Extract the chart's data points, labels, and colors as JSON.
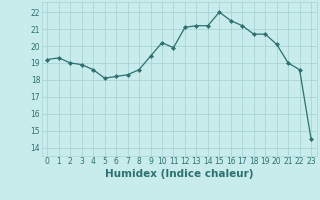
{
  "x": [
    0,
    1,
    2,
    3,
    4,
    5,
    6,
    7,
    8,
    9,
    10,
    11,
    12,
    13,
    14,
    15,
    16,
    17,
    18,
    19,
    20,
    21,
    22,
    23
  ],
  "y": [
    19.2,
    19.3,
    19.0,
    18.9,
    18.6,
    18.1,
    18.2,
    18.3,
    18.6,
    19.4,
    20.2,
    19.9,
    21.1,
    21.2,
    21.2,
    22.0,
    21.5,
    21.2,
    20.7,
    20.7,
    20.1,
    19.0,
    18.6,
    14.5
  ],
  "line_color": "#2e7070",
  "marker": "D",
  "marker_size": 2.0,
  "xlabel": "Humidex (Indice chaleur)",
  "bg_color": "#c8ebeb",
  "grid_color": "#aad4d4",
  "xlim": [
    -0.5,
    23.5
  ],
  "ylim": [
    13.5,
    22.6
  ],
  "yticks": [
    14,
    15,
    16,
    17,
    18,
    19,
    20,
    21,
    22
  ],
  "xticks": [
    0,
    1,
    2,
    3,
    4,
    5,
    6,
    7,
    8,
    9,
    10,
    11,
    12,
    13,
    14,
    15,
    16,
    17,
    18,
    19,
    20,
    21,
    22,
    23
  ],
  "tick_fontsize": 5.5,
  "xlabel_fontsize": 7.5,
  "label_color": "#2e7070"
}
